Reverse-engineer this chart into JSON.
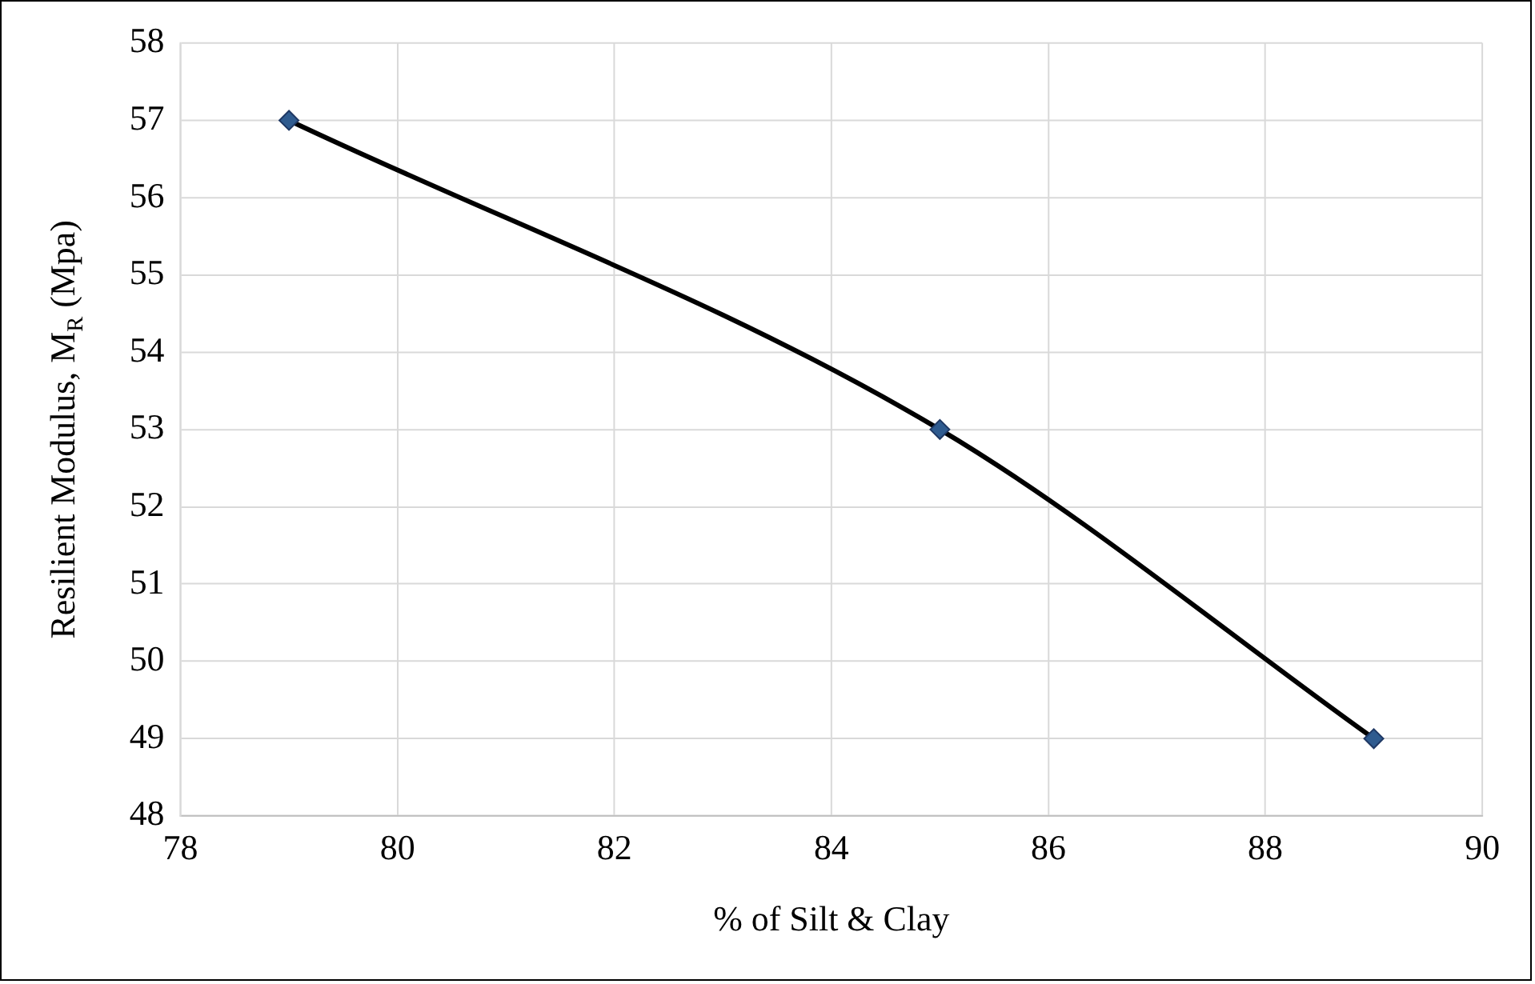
{
  "chart_data": {
    "type": "line",
    "xlabel": "% of Silt & Clay",
    "ylabel": "Resilient Modulus, M$_{R}$ (Mpa)",
    "x": [
      79,
      85,
      89
    ],
    "series": [
      {
        "color": "#000000",
        "colors": [
          "#2f5b8f",
          "#2f5b8f",
          "#2f5b8f"
        ],
        "values": [
          57,
          53,
          49
        ]
      }
    ],
    "xlim": [
      78,
      90
    ],
    "xticks": [
      78,
      80,
      82,
      84,
      86,
      88,
      90
    ],
    "ylim": [
      48,
      58
    ],
    "yticks": [
      48,
      49,
      50,
      51,
      52,
      53,
      54,
      55,
      56,
      57,
      58
    ],
    "grid": true,
    "legend": false,
    "marker": "diamond",
    "line_style": "solid"
  }
}
